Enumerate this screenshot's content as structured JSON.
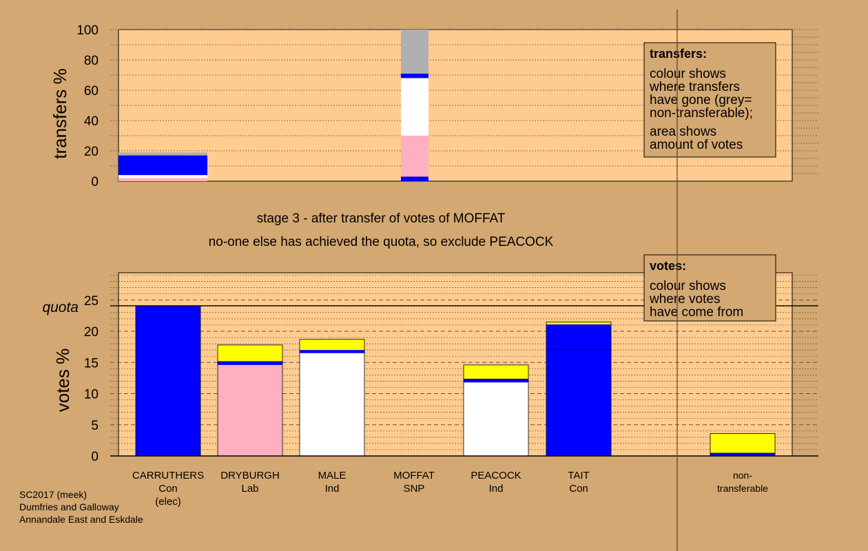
{
  "colors": {
    "background": "#d4a872",
    "plot_bg": "#ffcc90",
    "Con": "#0000ff",
    "Lab": "#ffb0c0",
    "Ind": "#ffffff",
    "SNP": "#ffff00",
    "nontransferable": "#b0b0b0"
  },
  "stage_text": "stage 3 - after transfer of votes of MOFFAT",
  "exclude_text": "no-one else has achieved the quota, so exclude PEACOCK",
  "footer": {
    "line1": "SC2017 (meek)",
    "line2": "Dumfries and Galloway",
    "line3": "Annandale East and Eskdale"
  },
  "transfers_legend": {
    "title": "transfers:",
    "para1": [
      "colour shows",
      "where transfers",
      "have gone (grey=",
      "non-transferable);"
    ],
    "para2": [
      "area shows",
      "amount of votes"
    ]
  },
  "votes_legend": {
    "title": "votes:",
    "para1": [
      "colour shows",
      "where votes",
      "have come from"
    ]
  },
  "chart_data": [
    {
      "type": "bar",
      "ylabel": "transfers %",
      "ylim": [
        0,
        100
      ],
      "yticks": [
        0,
        20,
        40,
        60,
        80,
        100
      ],
      "bars": [
        {
          "candidate": "CARRUTHERS",
          "stacks": [
            {
              "party": "Lab",
              "value": 2
            },
            {
              "party": "Ind",
              "value": 2
            },
            {
              "party": "Con",
              "value": 13
            },
            {
              "party": "nontransferable",
              "value": 2
            }
          ]
        },
        {
          "candidate": "MOFFAT",
          "stacks": [
            {
              "party": "Con",
              "value": 3
            },
            {
              "party": "Lab",
              "value": 27
            },
            {
              "party": "Ind",
              "value": 38
            },
            {
              "party": "Con",
              "value": 3
            },
            {
              "party": "nontransferable",
              "value": 29
            }
          ]
        }
      ]
    },
    {
      "type": "bar",
      "ylabel": "votes %",
      "ylim": [
        0,
        29
      ],
      "yticks": [
        0,
        5,
        10,
        15,
        20,
        25
      ],
      "quota": 24.1,
      "quota_label": "quota",
      "candidates": [
        {
          "name": "CARRUTHERS",
          "party": "Con",
          "note": "(elec)",
          "stacks": [
            {
              "party": "Con",
              "value": 24.1
            }
          ]
        },
        {
          "name": "DRYBURGH",
          "party": "Lab",
          "note": "",
          "stacks": [
            {
              "party": "Lab",
              "value": 14.6
            },
            {
              "party": "Con",
              "value": 0.6
            },
            {
              "party": "SNP",
              "value": 2.6
            }
          ]
        },
        {
          "name": "MALE",
          "party": "Ind",
          "note": "",
          "stacks": [
            {
              "party": "Ind",
              "value": 16.5
            },
            {
              "party": "Con",
              "value": 0.5
            },
            {
              "party": "SNP",
              "value": 1.7
            }
          ]
        },
        {
          "name": "MOFFAT",
          "party": "SNP",
          "note": "",
          "stacks": []
        },
        {
          "name": "PEACOCK",
          "party": "Ind",
          "note": "",
          "stacks": [
            {
              "party": "Ind",
              "value": 11.8
            },
            {
              "party": "Con",
              "value": 0.6
            },
            {
              "party": "SNP",
              "value": 2.2
            }
          ]
        },
        {
          "name": "TAIT",
          "party": "Con",
          "note": "",
          "stacks": [
            {
              "party": "Con",
              "value": 17.1
            },
            {
              "party": "Con",
              "value": 4.0
            },
            {
              "party": "SNP",
              "value": 0.4
            }
          ]
        },
        {
          "name": "non-",
          "party": "transferable",
          "note": "",
          "stacks": [
            {
              "party": "Con",
              "value": 0.5
            },
            {
              "party": "SNP",
              "value": 3.1
            }
          ]
        }
      ]
    }
  ]
}
